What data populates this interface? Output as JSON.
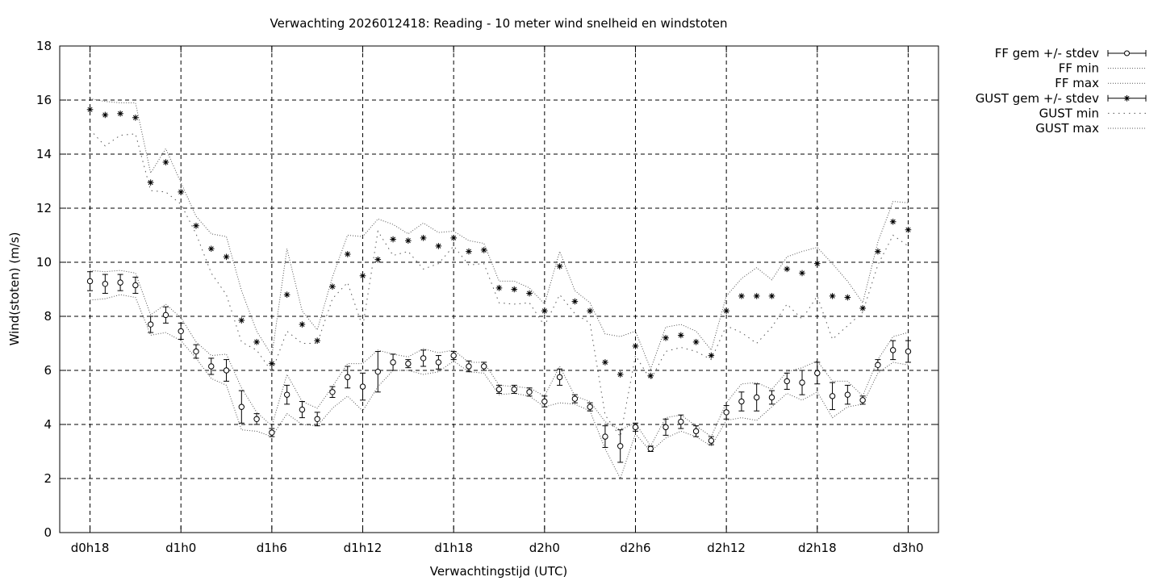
{
  "chart_data": {
    "type": "line",
    "title": "Verwachting 2026012418: Reading - 10 meter wind snelheid en windstoten",
    "xlabel": "Verwachtingstijd (UTC)",
    "ylabel": "Wind(stoten) (m/s)",
    "ylim": [
      0,
      18
    ],
    "xlim_hours": [
      -2,
      56
    ],
    "y_ticks": [
      0,
      2,
      4,
      6,
      8,
      10,
      12,
      14,
      16,
      18
    ],
    "x_ticks": [
      {
        "hour": 0,
        "label": "d0h18"
      },
      {
        "hour": 6,
        "label": "d1h0"
      },
      {
        "hour": 12,
        "label": "d1h6"
      },
      {
        "hour": 18,
        "label": "d1h12"
      },
      {
        "hour": 24,
        "label": "d1h18"
      },
      {
        "hour": 30,
        "label": "d2h0"
      },
      {
        "hour": 36,
        "label": "d2h6"
      },
      {
        "hour": 42,
        "label": "d2h12"
      },
      {
        "hour": 48,
        "label": "d2h18"
      },
      {
        "hour": 54,
        "label": "d3h0"
      }
    ],
    "grid": true,
    "legend_position": "outside-top-right",
    "x": [
      0,
      1,
      2,
      3,
      4,
      5,
      6,
      7,
      8,
      9,
      10,
      11,
      12,
      13,
      14,
      15,
      16,
      17,
      18,
      19,
      20,
      21,
      22,
      23,
      24,
      25,
      26,
      27,
      28,
      29,
      30,
      31,
      32,
      33,
      34,
      35,
      36,
      37,
      38,
      39,
      40,
      41,
      42,
      43,
      44,
      45,
      46,
      47,
      48,
      49,
      50,
      51,
      52,
      53,
      54
    ],
    "series": [
      {
        "name": "FF gem +/- stdev",
        "style": "errorbar-circle",
        "values": [
          9.3,
          9.2,
          9.25,
          9.15,
          7.7,
          8.05,
          7.45,
          6.7,
          6.15,
          6.0,
          4.65,
          4.2,
          3.7,
          5.1,
          4.55,
          4.2,
          5.2,
          5.75,
          5.4,
          5.95,
          6.3,
          6.25,
          6.45,
          6.3,
          6.55,
          6.15,
          6.15,
          5.3,
          5.3,
          5.2,
          4.85,
          5.75,
          4.95,
          4.65,
          3.55,
          3.2,
          3.9,
          3.1,
          3.9,
          4.1,
          3.75,
          3.4,
          4.45,
          4.85,
          5.0,
          5.0,
          5.6,
          5.55,
          5.9,
          5.05,
          5.1,
          4.9,
          6.2,
          6.75,
          6.7
        ],
        "stdev": [
          0.35,
          0.35,
          0.3,
          0.3,
          0.3,
          0.3,
          0.3,
          0.25,
          0.3,
          0.4,
          0.6,
          0.2,
          0.15,
          0.35,
          0.3,
          0.25,
          0.2,
          0.4,
          0.5,
          0.75,
          0.3,
          0.15,
          0.3,
          0.25,
          0.15,
          0.2,
          0.15,
          0.15,
          0.15,
          0.15,
          0.2,
          0.3,
          0.15,
          0.15,
          0.4,
          0.6,
          0.15,
          0.1,
          0.3,
          0.25,
          0.2,
          0.15,
          0.25,
          0.35,
          0.5,
          0.25,
          0.3,
          0.45,
          0.4,
          0.5,
          0.35,
          0.15,
          0.2,
          0.35,
          0.4
        ]
      },
      {
        "name": "FF min",
        "style": "dotted",
        "values": [
          8.6,
          8.65,
          8.8,
          8.7,
          7.3,
          7.4,
          7.1,
          6.45,
          5.7,
          5.45,
          3.8,
          3.75,
          3.55,
          4.4,
          4.0,
          3.95,
          4.6,
          5.05,
          4.5,
          5.4,
          6.0,
          6.0,
          5.85,
          5.95,
          6.35,
          5.95,
          5.9,
          5.1,
          5.15,
          5.05,
          4.65,
          4.8,
          4.75,
          4.5,
          3.1,
          2.0,
          3.65,
          3.0,
          3.5,
          3.75,
          3.55,
          3.2,
          4.15,
          4.25,
          4.15,
          4.65,
          5.15,
          4.9,
          5.2,
          4.25,
          4.65,
          4.75,
          5.9,
          6.3,
          6.2
        ]
      },
      {
        "name": "FF max",
        "style": "dotted",
        "values": [
          9.7,
          9.65,
          9.7,
          9.6,
          8.05,
          8.45,
          7.95,
          7.05,
          6.55,
          6.6,
          5.35,
          4.45,
          3.95,
          5.85,
          4.85,
          4.6,
          5.4,
          6.25,
          6.25,
          6.75,
          6.6,
          6.5,
          6.8,
          6.65,
          6.75,
          6.3,
          6.3,
          5.45,
          5.4,
          5.35,
          5.05,
          6.15,
          5.05,
          4.85,
          4.1,
          3.8,
          4.05,
          3.2,
          4.25,
          4.35,
          3.95,
          3.55,
          4.8,
          5.5,
          5.55,
          5.3,
          5.95,
          6.1,
          6.35,
          5.6,
          5.6,
          5.05,
          6.4,
          7.25,
          7.4
        ]
      },
      {
        "name": "GUST gem +/- stdev",
        "style": "errorbar-star",
        "values": [
          15.65,
          15.45,
          15.5,
          15.35,
          12.95,
          13.7,
          12.6,
          11.35,
          10.5,
          10.2,
          7.85,
          7.05,
          6.25,
          8.8,
          7.7,
          7.1,
          9.1,
          10.3,
          9.5,
          10.1,
          10.85,
          10.8,
          10.9,
          10.6,
          10.9,
          10.4,
          10.45,
          9.05,
          9.0,
          8.85,
          8.2,
          9.85,
          8.55,
          8.2,
          6.3,
          5.85,
          6.9,
          5.8,
          7.2,
          7.3,
          7.05,
          6.55,
          8.2,
          8.75,
          8.75,
          8.75,
          9.75,
          9.6,
          9.95,
          8.75,
          8.7,
          8.3,
          10.4,
          11.5,
          11.2
        ]
      },
      {
        "name": "GUST min",
        "style": "dotted-sparse",
        "values": [
          14.9,
          14.3,
          14.7,
          14.75,
          12.65,
          12.6,
          12.15,
          11.05,
          9.6,
          8.8,
          7.05,
          6.75,
          5.95,
          7.45,
          7.0,
          7.0,
          8.65,
          9.25,
          7.6,
          11.15,
          10.25,
          10.4,
          9.75,
          9.95,
          10.6,
          9.9,
          9.95,
          8.5,
          8.45,
          8.5,
          7.65,
          8.8,
          8.1,
          7.75,
          4.35,
          3.55,
          6.55,
          5.65,
          6.7,
          6.85,
          6.7,
          6.4,
          7.65,
          7.4,
          7.0,
          7.6,
          8.45,
          7.9,
          8.75,
          7.15,
          7.65,
          8.15,
          9.9,
          11.0,
          10.6
        ]
      },
      {
        "name": "GUST max",
        "style": "dotted",
        "values": [
          16.05,
          15.95,
          15.9,
          15.9,
          13.3,
          14.2,
          12.95,
          11.7,
          11.05,
          10.95,
          8.95,
          7.45,
          6.55,
          10.5,
          8.2,
          7.5,
          9.45,
          11.0,
          10.95,
          11.6,
          11.4,
          11.05,
          11.45,
          11.1,
          11.15,
          10.8,
          10.7,
          9.3,
          9.3,
          9.05,
          8.45,
          10.4,
          8.95,
          8.5,
          7.35,
          7.25,
          7.45,
          6.05,
          7.6,
          7.7,
          7.45,
          6.75,
          8.75,
          9.4,
          9.8,
          9.35,
          10.2,
          10.4,
          10.55,
          9.95,
          9.3,
          8.5,
          10.75,
          12.25,
          12.2
        ]
      }
    ]
  }
}
